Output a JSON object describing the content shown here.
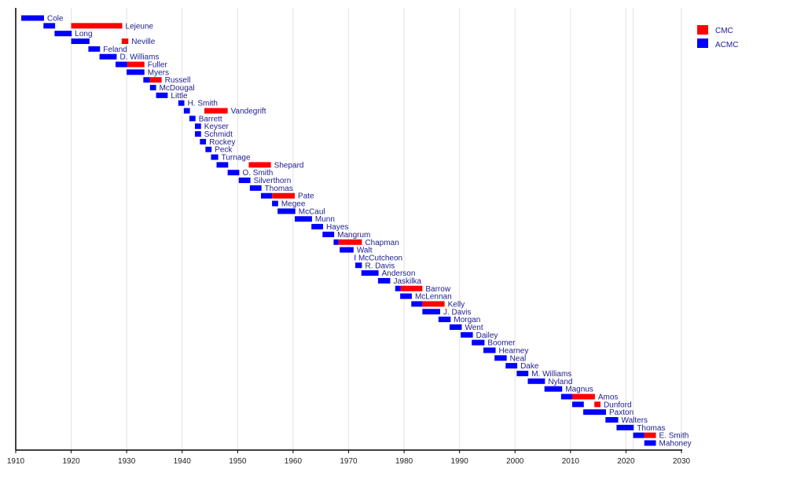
{
  "chart_data": {
    "type": "timeline",
    "title": "",
    "xlabel": "",
    "ylabel": "",
    "xlim": [
      1910,
      2030
    ],
    "x_ticks": [
      "1910",
      "1920",
      "1930",
      "1940",
      "1950",
      "1960",
      "1970",
      "1980",
      "1990",
      "2000",
      "2010",
      "2020",
      "2030"
    ],
    "legend": {
      "placement": "top-right",
      "entries": [
        {
          "label": "CMC",
          "color": "#ff0000"
        },
        {
          "label": "ACMC",
          "color": "#0000ff"
        }
      ]
    },
    "rows": [
      {
        "name": "Cole",
        "acmc": [
          1911,
          1915.1
        ]
      },
      {
        "name": "Lejeune",
        "acmc": [
          1915,
          1917.1
        ],
        "cmc": [
          1920,
          1929.2
        ]
      },
      {
        "name": "Long",
        "acmc": [
          1917,
          1920.1
        ]
      },
      {
        "name": "Neville",
        "acmc": [
          1920,
          1923.3
        ],
        "cmc": [
          1929.1,
          1930.3
        ]
      },
      {
        "name": "Feland",
        "acmc": [
          1923.1,
          1925.2
        ]
      },
      {
        "name": "D. Williams",
        "acmc": [
          1925.1,
          1928.2
        ]
      },
      {
        "name": "Fuller",
        "acmc": [
          1928,
          1930.1
        ],
        "cmc": [
          1930.1,
          1933.2
        ]
      },
      {
        "name": "Myers",
        "acmc": [
          1930,
          1933.2
        ]
      },
      {
        "name": "Russell",
        "acmc": [
          1933,
          1934.2
        ],
        "cmc": [
          1934.2,
          1936.3
        ]
      },
      {
        "name": "McDougal",
        "acmc": [
          1934.2,
          1935.3
        ]
      },
      {
        "name": "Little",
        "acmc": [
          1935.3,
          1937.4
        ]
      },
      {
        "name": "H. Smith",
        "acmc": [
          1939.3,
          1940.4
        ]
      },
      {
        "name": "Vandegrift",
        "acmc": [
          1940.3,
          1941.4
        ],
        "cmc": [
          1944,
          1948.2
        ]
      },
      {
        "name": "Barrett",
        "acmc": [
          1941.3,
          1942.4
        ]
      },
      {
        "name": "Keyser",
        "acmc": [
          1942.3,
          1943.4
        ]
      },
      {
        "name": "Schmidt",
        "acmc": [
          1942.3,
          1943.4
        ]
      },
      {
        "name": "Rockey",
        "acmc": [
          1943.2,
          1944.3
        ]
      },
      {
        "name": "Peck",
        "acmc": [
          1944.2,
          1945.3
        ]
      },
      {
        "name": "Turnage",
        "acmc": [
          1945.2,
          1946.5
        ]
      },
      {
        "name": "Shepard",
        "acmc": [
          1946.2,
          1948.3
        ],
        "cmc": [
          1952,
          1956
        ]
      },
      {
        "name": "O. Smith",
        "acmc": [
          1948.2,
          1950.3
        ]
      },
      {
        "name": "Silverthorn",
        "acmc": [
          1950.2,
          1952.3
        ]
      },
      {
        "name": "Thomas",
        "acmc": [
          1952.2,
          1954.3
        ]
      },
      {
        "name": "Pate",
        "acmc": [
          1954.2,
          1956.2
        ],
        "cmc": [
          1956.2,
          1960.3
        ]
      },
      {
        "name": "Megee",
        "acmc": [
          1956.2,
          1957.3
        ]
      },
      {
        "name": "McCaul",
        "acmc": [
          1957.2,
          1960.4
        ]
      },
      {
        "name": "Munn",
        "acmc": [
          1960.3,
          1963.4
        ]
      },
      {
        "name": "Hayes",
        "acmc": [
          1963.3,
          1965.4
        ]
      },
      {
        "name": "Mangrum",
        "acmc": [
          1965.3,
          1967.4
        ]
      },
      {
        "name": "Chapman",
        "acmc": [
          1967.3,
          1968.2
        ],
        "cmc": [
          1968.2,
          1972.4
        ]
      },
      {
        "name": "Walt",
        "acmc": [
          1968.4,
          1970.9
        ]
      },
      {
        "name": "McCutcheon",
        "acmc": [
          1971.1,
          1971.2
        ]
      },
      {
        "name": "R. Davis",
        "acmc": [
          1971.2,
          1972.4
        ]
      },
      {
        "name": "Anderson",
        "acmc": [
          1972.3,
          1975.4
        ]
      },
      {
        "name": "Jaskilka",
        "acmc": [
          1975.3,
          1977.5
        ]
      },
      {
        "name": "Barrow",
        "acmc": [
          1978.4,
          1979.4
        ],
        "cmc": [
          1979.4,
          1983.3
        ]
      },
      {
        "name": "McLennan",
        "acmc": [
          1979.3,
          1981.4
        ]
      },
      {
        "name": "Kelly",
        "acmc": [
          1981.3,
          1983.3
        ],
        "cmc": [
          1983.3,
          1987.3
        ]
      },
      {
        "name": "J. Davis",
        "acmc": [
          1983.3,
          1986.5
        ]
      },
      {
        "name": "Morgan",
        "acmc": [
          1986.2,
          1988.4
        ]
      },
      {
        "name": "Went",
        "acmc": [
          1988.2,
          1990.4
        ]
      },
      {
        "name": "Dailey",
        "acmc": [
          1990.2,
          1992.4
        ]
      },
      {
        "name": "Boomer",
        "acmc": [
          1992.2,
          1994.5
        ]
      },
      {
        "name": "Hearney",
        "acmc": [
          1994.3,
          1996.5
        ]
      },
      {
        "name": "Neal",
        "acmc": [
          1996.3,
          1998.5
        ]
      },
      {
        "name": "Dake",
        "acmc": [
          1998.3,
          2000.4
        ]
      },
      {
        "name": "M. Williams",
        "acmc": [
          2000.3,
          2002.4
        ]
      },
      {
        "name": "Nyland",
        "acmc": [
          2002.3,
          2005.4
        ]
      },
      {
        "name": "Magnus",
        "acmc": [
          2005.3,
          2008.5
        ]
      },
      {
        "name": "Amos",
        "acmc": [
          2008.3,
          2010.3
        ],
        "cmc": [
          2010.3,
          2014.4
        ]
      },
      {
        "name": "Dunford",
        "acmc": [
          2010.3,
          2012.4
        ],
        "cmc": [
          2014.3,
          2015.4
        ]
      },
      {
        "name": "Paxton",
        "acmc": [
          2012.3,
          2016.4
        ]
      },
      {
        "name": "Walters",
        "acmc": [
          2016.3,
          2018.6
        ]
      },
      {
        "name": "Thomas",
        "acmc": [
          2018.3,
          2021.4
        ]
      },
      {
        "name": "E. Smith",
        "acmc": [
          2021.3,
          2023.3
        ],
        "cmc": [
          2023.3,
          2025.4
        ]
      },
      {
        "name": "Mahoney",
        "acmc": [
          2023.3,
          2025.4
        ]
      }
    ]
  }
}
